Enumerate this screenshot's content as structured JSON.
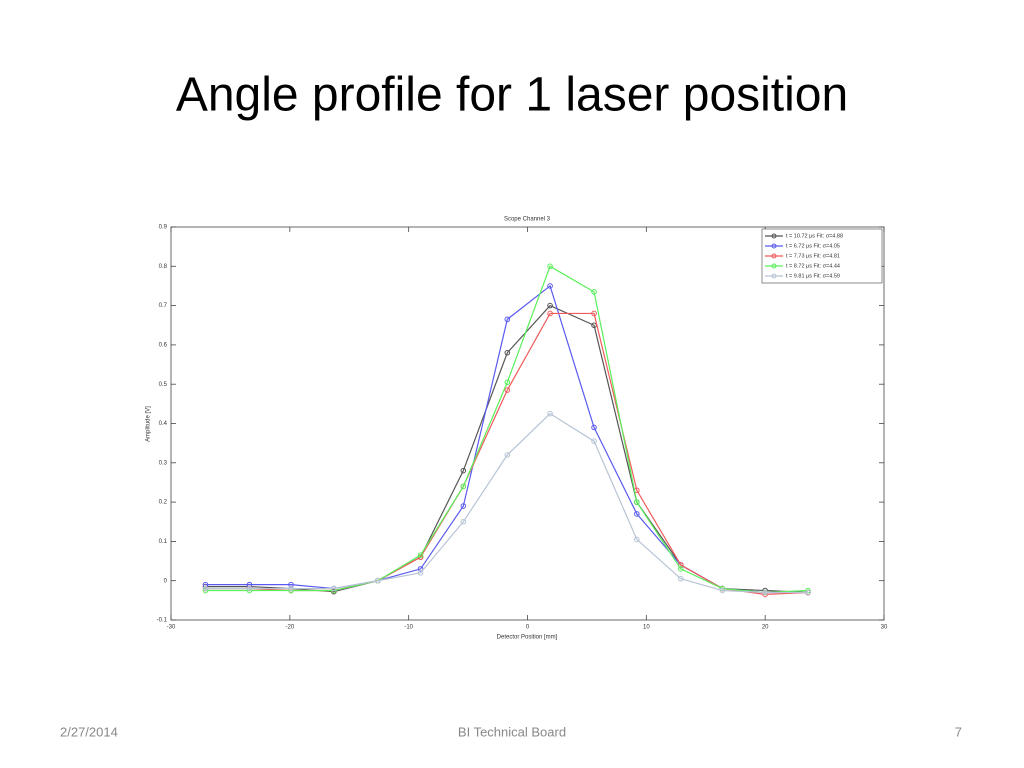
{
  "slide": {
    "title": "Angle profile for 1 laser position",
    "date": "2/27/2014",
    "footer": "BI Technical Board",
    "page": "7"
  },
  "chart_data": {
    "type": "line",
    "title": "Scope Channel 3",
    "x_label": "Detector Position [mm]",
    "y_label": "Amplitude [V]",
    "x": [
      -27.1,
      -23.4,
      -19.9,
      -16.3,
      -12.6,
      -9.0,
      -5.4,
      -1.7,
      1.9,
      5.6,
      9.2,
      12.9,
      16.4,
      20.0,
      23.6
    ],
    "series": [
      {
        "name": "t = 10.72  μs Fit:  σ=4.88",
        "color": "#555555",
        "values": [
          -0.015,
          -0.015,
          -0.02,
          -0.028,
          0.0,
          0.06,
          0.28,
          0.58,
          0.7,
          0.65,
          0.2,
          0.04,
          -0.02,
          -0.025,
          -0.03
        ]
      },
      {
        "name": "t = 6.72  μs Fit:  σ=4.05",
        "color": "#5a5af0",
        "values": [
          -0.01,
          -0.01,
          -0.01,
          -0.02,
          0.0,
          0.03,
          0.19,
          0.665,
          0.75,
          0.39,
          0.17,
          0.04,
          -0.02,
          -0.03,
          -0.03
        ]
      },
      {
        "name": "t = 7.73  μs Fit:  σ=4.81",
        "color": "#f05a5a",
        "values": [
          -0.02,
          -0.02,
          -0.025,
          -0.025,
          0.0,
          0.06,
          0.24,
          0.485,
          0.68,
          0.68,
          0.23,
          0.04,
          -0.02,
          -0.035,
          -0.03
        ]
      },
      {
        "name": "t = 8.72  μs Fit:  σ=4.44",
        "color": "#5af05a",
        "values": [
          -0.025,
          -0.025,
          -0.025,
          -0.025,
          0.0,
          0.065,
          0.24,
          0.505,
          0.8,
          0.735,
          0.2,
          0.03,
          -0.02,
          -0.03,
          -0.025
        ]
      },
      {
        "name": "t = 9.81  μs Fit:  σ=4.59",
        "color": "#b8c4d4",
        "values": [
          -0.02,
          -0.02,
          -0.02,
          -0.02,
          0.0,
          0.02,
          0.15,
          0.32,
          0.425,
          0.355,
          0.105,
          0.005,
          -0.025,
          -0.03,
          -0.03
        ]
      }
    ],
    "xlim": [
      -30,
      30
    ],
    "xticks": [
      -30,
      -20,
      -10,
      0,
      10,
      20,
      30
    ],
    "ylim": [
      -0.1,
      0.9
    ],
    "yticks": [
      -0.1,
      0,
      0.1,
      0.2,
      0.3,
      0.4,
      0.5,
      0.6,
      0.7,
      0.8,
      0.9
    ],
    "grid": false,
    "legend": "top-right"
  }
}
